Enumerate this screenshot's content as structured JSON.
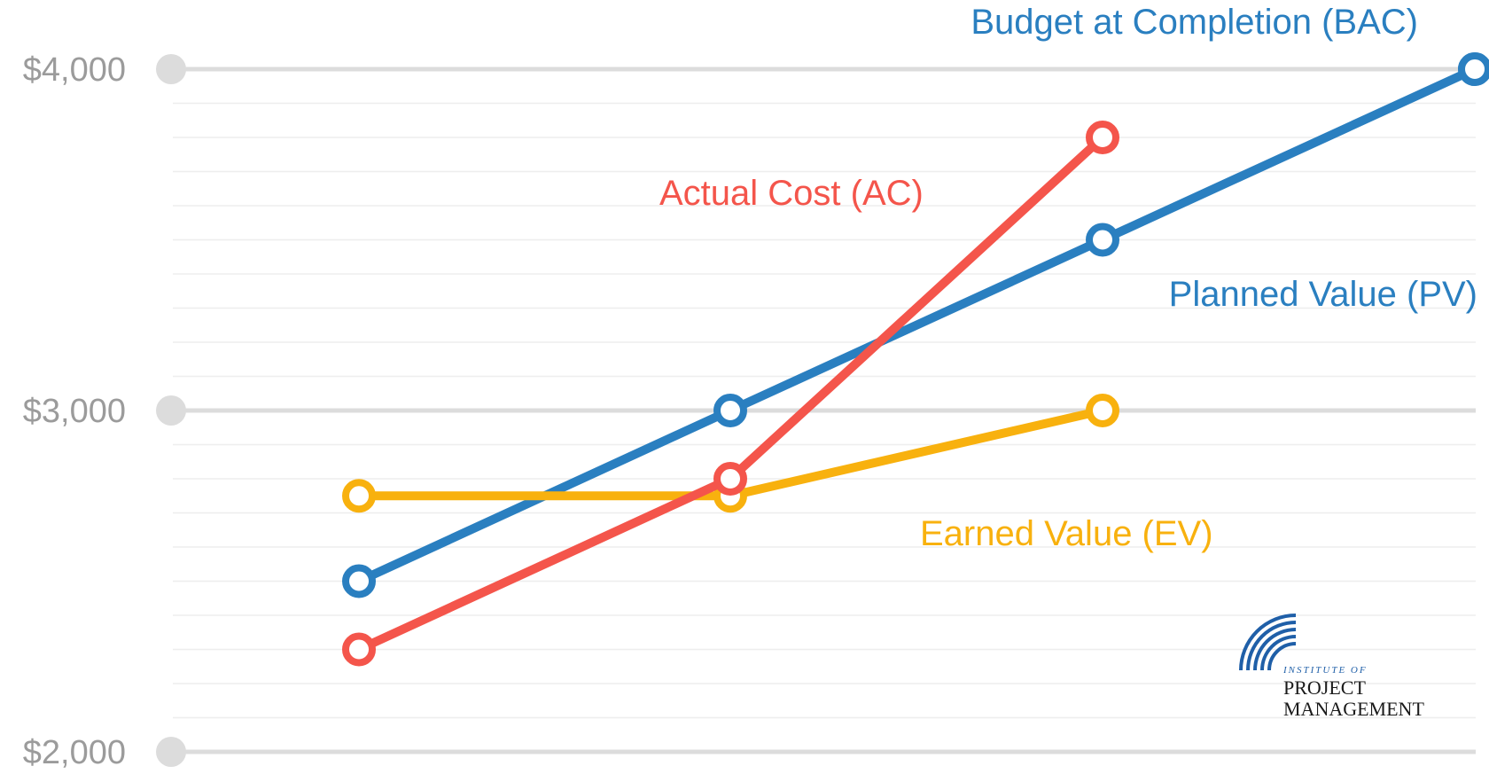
{
  "chart_data": {
    "type": "line",
    "title": "",
    "xlabel": "",
    "ylabel": "",
    "ylim": [
      2000,
      4000
    ],
    "y_ticks": [
      "$4,000",
      "$3,000",
      "$2,000"
    ],
    "y_tick_values": [
      4000,
      3000,
      2000
    ],
    "minor_grid_step": 100,
    "grid": true,
    "x": [
      1,
      2,
      3,
      4
    ],
    "series": [
      {
        "name": "Budget at Completion (BAC)",
        "color": "#2a7fc0",
        "marker": "open-circle",
        "values": [
          null,
          null,
          null,
          4000
        ]
      },
      {
        "name": "Planned Value (PV)",
        "color": "#2a7fc0",
        "marker": "open-circle",
        "values": [
          2500,
          3000,
          3500,
          4000
        ]
      },
      {
        "name": "Actual Cost (AC)",
        "color": "#f4554b",
        "marker": "open-circle",
        "values": [
          2300,
          2800,
          3800,
          null
        ]
      },
      {
        "name": "Earned Value (EV)",
        "color": "#f8b10e",
        "marker": "open-circle",
        "values": [
          2750,
          2750,
          3000,
          null
        ]
      }
    ]
  },
  "labels": {
    "bac": "Budget at Completion (BAC)",
    "ac": "Actual Cost (AC)",
    "pv": "Planned Value (PV)",
    "ev": "Earned Value (EV)"
  },
  "logo": {
    "line1": "INSTITUTE OF",
    "line2": "PROJECT",
    "line3": "MANAGEMENT",
    "icon": "institute-logo-icon"
  },
  "colors": {
    "blue": "#2a7fc0",
    "red": "#f4554b",
    "yellow": "#f8b10e",
    "grid_major": "#dcdcdc",
    "grid_minor": "#eeeeee",
    "tick_text": "#9b9b9b"
  }
}
